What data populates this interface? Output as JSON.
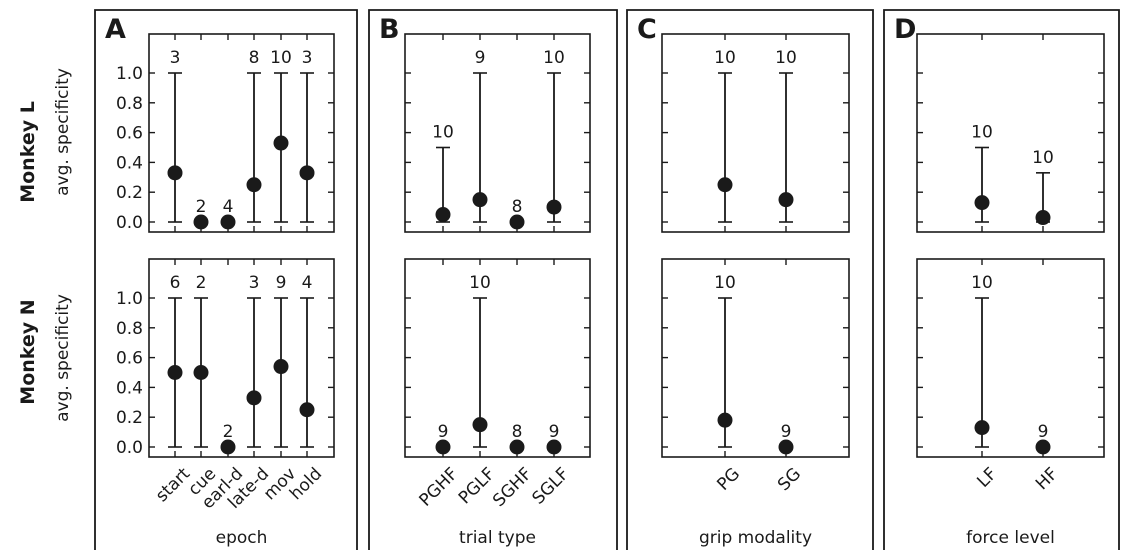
{
  "row_labels": [
    "Monkey L",
    "Monkey N"
  ],
  "ylabel": "avg. specificity",
  "y_ticks": [
    "0.0",
    "0.2",
    "0.4",
    "0.6",
    "0.8",
    "1.0"
  ],
  "chart_data": [
    {
      "type": "scatter",
      "panel": "A",
      "xlabel": "epoch",
      "categories": [
        "start",
        "cue",
        "earl-d",
        "late-d",
        "mov",
        "hold"
      ],
      "ylim": [
        -0.05,
        1.2
      ],
      "rows": [
        {
          "subject": "Monkey L",
          "values": [
            0.33,
            0.0,
            0.0,
            0.25,
            0.53,
            0.33
          ],
          "upper": [
            1.0,
            0.0,
            0.0,
            1.0,
            1.0,
            1.0
          ],
          "counts": [
            "3",
            "2",
            "4",
            "8",
            "10",
            "3"
          ]
        },
        {
          "subject": "Monkey N",
          "values": [
            0.5,
            0.5,
            0.0,
            0.33,
            0.54,
            0.25
          ],
          "upper": [
            1.0,
            1.0,
            0.0,
            1.0,
            1.0,
            1.0
          ],
          "counts": [
            "6",
            "2",
            "2",
            "3",
            "9",
            "4"
          ]
        }
      ]
    },
    {
      "type": "scatter",
      "panel": "B",
      "xlabel": "trial type",
      "categories": [
        "PGHF",
        "PGLF",
        "SGHF",
        "SGLF"
      ],
      "ylim": [
        -0.05,
        1.2
      ],
      "rows": [
        {
          "subject": "Monkey L",
          "values": [
            0.05,
            0.15,
            0.0,
            0.1
          ],
          "upper": [
            0.5,
            1.0,
            0.0,
            1.0
          ],
          "counts": [
            "10",
            "9",
            "8",
            "10"
          ]
        },
        {
          "subject": "Monkey N",
          "values": [
            0.0,
            0.15,
            0.0,
            0.0
          ],
          "upper": [
            0.0,
            1.0,
            0.0,
            0.0
          ],
          "counts": [
            "9",
            "10",
            "8",
            "9"
          ]
        }
      ]
    },
    {
      "type": "scatter",
      "panel": "C",
      "xlabel": "grip modality",
      "categories": [
        "PG",
        "SG"
      ],
      "ylim": [
        -0.05,
        1.2
      ],
      "rows": [
        {
          "subject": "Monkey L",
          "values": [
            0.25,
            0.15
          ],
          "upper": [
            1.0,
            1.0
          ],
          "counts": [
            "10",
            "10"
          ]
        },
        {
          "subject": "Monkey N",
          "values": [
            0.18,
            0.0
          ],
          "upper": [
            1.0,
            0.0
          ],
          "counts": [
            "10",
            "9"
          ]
        }
      ]
    },
    {
      "type": "scatter",
      "panel": "D",
      "xlabel": "force level",
      "categories": [
        "LF",
        "HF"
      ],
      "ylim": [
        -0.05,
        1.2
      ],
      "rows": [
        {
          "subject": "Monkey L",
          "values": [
            0.13,
            0.03
          ],
          "upper": [
            0.5,
            0.33
          ],
          "counts": [
            "10",
            "10"
          ]
        },
        {
          "subject": "Monkey N",
          "values": [
            0.13,
            0.0
          ],
          "upper": [
            1.0,
            0.0
          ],
          "counts": [
            "10",
            "9"
          ]
        }
      ]
    }
  ]
}
